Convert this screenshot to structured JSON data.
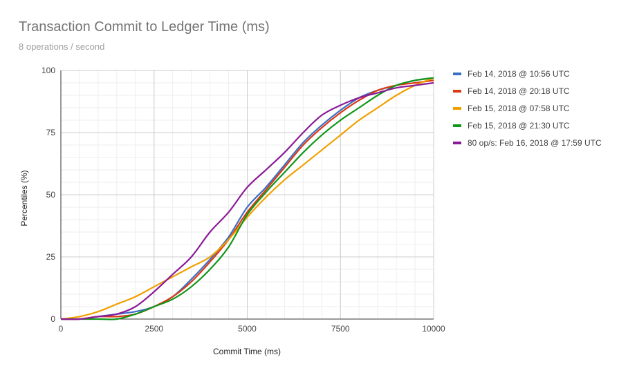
{
  "chart_data": {
    "type": "line",
    "title": "Transaction Commit to Ledger Time (ms)",
    "subtitle": "8 operations / second",
    "xlabel": "Commit Time (ms)",
    "ylabel": "Percentiles (%)",
    "xlim": [
      0,
      10000
    ],
    "ylim": [
      0,
      100
    ],
    "x_ticks": [
      0,
      2500,
      5000,
      7500,
      10000
    ],
    "y_ticks": [
      0,
      25,
      50,
      75,
      100
    ],
    "grid": true,
    "legend_position": "right",
    "series": [
      {
        "name": "Feb 14, 2018 @ 10:56 UTC",
        "color": "#3b6fc4",
        "x": [
          0,
          500,
          1000,
          1500,
          2000,
          2500,
          3000,
          3500,
          4000,
          4500,
          5000,
          5500,
          6000,
          6500,
          7000,
          7500,
          8000,
          8500,
          9000,
          9500,
          10000
        ],
        "y": [
          0,
          0,
          1,
          2,
          3,
          5,
          9,
          16,
          24,
          33,
          45,
          53,
          62,
          71,
          78,
          84,
          89,
          92,
          94,
          96,
          97
        ]
      },
      {
        "name": "Feb 14, 2018 @ 20:18 UTC",
        "color": "#dc3912",
        "x": [
          0,
          500,
          1000,
          1500,
          2000,
          2500,
          3000,
          3500,
          4000,
          4500,
          5000,
          5500,
          6000,
          6500,
          7000,
          7500,
          8000,
          8500,
          9000,
          9500,
          10000
        ],
        "y": [
          0,
          0,
          1,
          1,
          2,
          5,
          9,
          15,
          23,
          32,
          43,
          52,
          61,
          70,
          77,
          83,
          88,
          92,
          94,
          95,
          96
        ]
      },
      {
        "name": "Feb 15, 2018 @ 07:58 UTC",
        "color": "#f0a000",
        "x": [
          0,
          500,
          1000,
          1500,
          2000,
          2500,
          3000,
          3500,
          4000,
          4500,
          5000,
          5500,
          6000,
          6500,
          7000,
          7500,
          8000,
          8500,
          9000,
          9500,
          10000
        ],
        "y": [
          0,
          1,
          3,
          6,
          9,
          13,
          17,
          21,
          25,
          32,
          41,
          49,
          56,
          62,
          68,
          74,
          80,
          85,
          90,
          94,
          97
        ]
      },
      {
        "name": "Feb 15, 2018 @ 21:30 UTC",
        "color": "#109618",
        "x": [
          0,
          500,
          1000,
          1500,
          2000,
          2500,
          3000,
          3500,
          4000,
          4500,
          5000,
          5500,
          6000,
          6500,
          7000,
          7500,
          8000,
          8500,
          9000,
          9500,
          10000
        ],
        "y": [
          0,
          0,
          0,
          0,
          2,
          5,
          8,
          13,
          20,
          29,
          42,
          51,
          59,
          67,
          74,
          80,
          85,
          90,
          94,
          96,
          97
        ]
      },
      {
        "name": "80 op/s: Feb 16, 2018 @ 17:59 UTC",
        "color": "#8b1a98",
        "x": [
          0,
          500,
          1000,
          1500,
          2000,
          2500,
          3000,
          3500,
          4000,
          4500,
          5000,
          5500,
          6000,
          6500,
          7000,
          7500,
          8000,
          8500,
          9000,
          9500,
          10000
        ],
        "y": [
          0,
          0,
          1,
          2,
          5,
          11,
          18,
          25,
          35,
          43,
          53,
          60,
          67,
          75,
          82,
          86,
          89,
          91,
          93,
          94,
          95
        ]
      }
    ]
  }
}
